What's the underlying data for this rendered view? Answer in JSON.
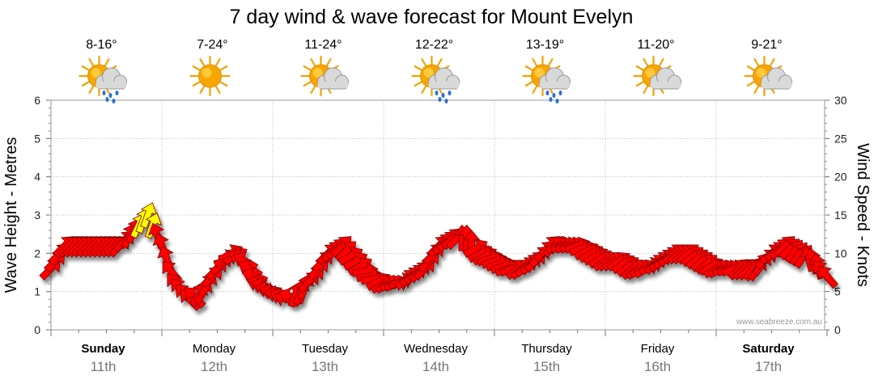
{
  "chart_data": {
    "type": "line",
    "title": "7 day wind & wave forecast for Mount Evelyn",
    "y_left": {
      "label": "Wave Height - Metres",
      "range": [
        0,
        6
      ],
      "ticks": [
        "0",
        "1",
        "2",
        "3",
        "4",
        "5",
        "6"
      ]
    },
    "y_right": {
      "label": "Wind Speed - Knots",
      "range": [
        0,
        30
      ],
      "ticks": [
        "0",
        "5",
        "10",
        "15",
        "20",
        "25",
        "30"
      ]
    },
    "grid": true,
    "days": [
      {
        "name": "Sunday",
        "date": "11th",
        "bold": true,
        "temp": "8-16°",
        "weather_icon": "sun-cloud-rain-icon"
      },
      {
        "name": "Monday",
        "date": "12th",
        "bold": false,
        "temp": "7-24°",
        "weather_icon": "sun-icon"
      },
      {
        "name": "Tuesday",
        "date": "13th",
        "bold": false,
        "temp": "11-24°",
        "weather_icon": "sun-cloud-icon"
      },
      {
        "name": "Wednesday",
        "date": "14th",
        "bold": false,
        "temp": "12-22°",
        "weather_icon": "sun-cloud-rain-icon"
      },
      {
        "name": "Thursday",
        "date": "15th",
        "bold": false,
        "temp": "13-19°",
        "weather_icon": "sun-cloud-rain-icon"
      },
      {
        "name": "Friday",
        "date": "16th",
        "bold": false,
        "temp": "11-20°",
        "weather_icon": "sun-cloud-icon"
      },
      {
        "name": "Saturday",
        "date": "17th",
        "bold": true,
        "temp": "9-21°",
        "weather_icon": "sun-cloud-icon"
      }
    ],
    "wind_series": {
      "x_hours": [
        0,
        3,
        6,
        9,
        12,
        15,
        18,
        21,
        24,
        27,
        30,
        33,
        36,
        39,
        42,
        45,
        48,
        51,
        54,
        57,
        60,
        63,
        66,
        69,
        72,
        75,
        78,
        81,
        84,
        87,
        90,
        93,
        96,
        99,
        102,
        105,
        108,
        111,
        114,
        117,
        120,
        123,
        126,
        129,
        132,
        135,
        138,
        141,
        144,
        147,
        150,
        153,
        156,
        159,
        162,
        165,
        168
      ],
      "speed_knots": [
        8,
        11,
        11,
        11,
        11,
        11,
        13,
        15,
        11,
        6,
        4,
        5,
        8,
        10,
        9,
        6,
        5,
        4,
        5,
        7,
        10,
        11,
        9,
        7,
        6,
        6,
        7,
        8,
        11,
        12,
        12,
        10,
        9,
        8,
        8,
        9,
        11,
        11,
        11,
        10,
        9,
        9,
        8,
        8,
        9,
        10,
        10,
        9,
        8,
        8,
        8,
        8,
        10,
        11,
        10,
        9,
        7
      ],
      "direction_from_deg": [
        225,
        225,
        225,
        225,
        225,
        225,
        205,
        200,
        160,
        140,
        135,
        210,
        225,
        240,
        120,
        110,
        100,
        110,
        200,
        225,
        225,
        225,
        240,
        260,
        240,
        250,
        230,
        225,
        225,
        225,
        180,
        240,
        250,
        250,
        230,
        225,
        225,
        250,
        250,
        240,
        235,
        235,
        230,
        240,
        230,
        230,
        230,
        230,
        240,
        250,
        225,
        215,
        230,
        225,
        215,
        165,
        140
      ],
      "highlight_color": "#ffff00",
      "base_color": "#ff0000"
    },
    "watermark": "www.seabreeze.com.au"
  }
}
